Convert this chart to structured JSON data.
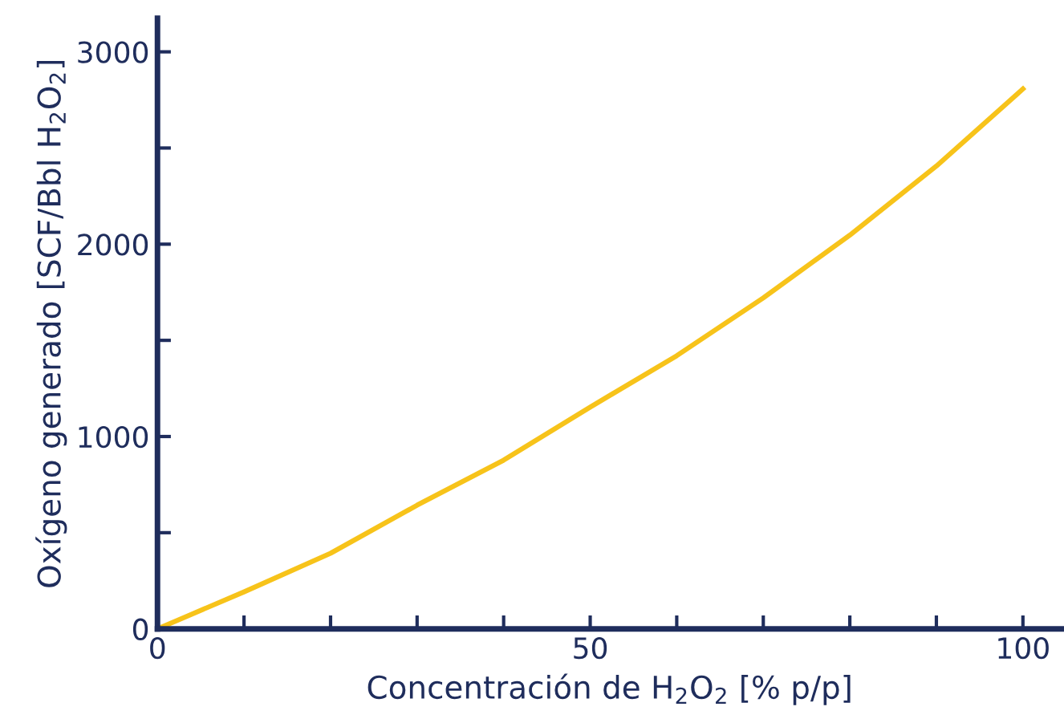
{
  "chart_data": {
    "type": "line",
    "xlabel": "Concentración de H$_{2}$O$_{2}$ [% p/p]",
    "ylabel": "Oxígeno generado [SCF/Bbl H$_{2}$O$_{2}$]",
    "x": [
      0,
      10,
      20,
      30,
      40,
      50,
      60,
      70,
      80,
      90,
      100
    ],
    "series": [
      {
        "color": "#f7c31a",
        "values": [
          0,
          192,
          393,
          643,
          877,
          1153,
          1420,
          1721,
          2047,
          2406,
          2807
        ]
      }
    ],
    "xlim": [
      0,
      104.5
    ],
    "ylim": [
      0,
      3175
    ],
    "xticks": [
      0,
      {
        "value": 10,
        "label": null
      },
      {
        "value": 20,
        "label": null
      },
      {
        "value": 30,
        "label": null
      },
      {
        "value": 40,
        "label": null
      },
      50,
      {
        "value": 60,
        "label": null
      },
      {
        "value": 70,
        "label": null
      },
      {
        "value": 80,
        "label": null
      },
      {
        "value": 90,
        "label": null
      },
      100
    ],
    "yticks": [
      0,
      {
        "value": 500,
        "label": null
      },
      1000,
      {
        "value": 1500,
        "label": null
      },
      2000,
      {
        "value": 2500,
        "label": null
      },
      3000
    ],
    "grid": false,
    "legend": false,
    "marker": "none",
    "line_style": "solid"
  }
}
